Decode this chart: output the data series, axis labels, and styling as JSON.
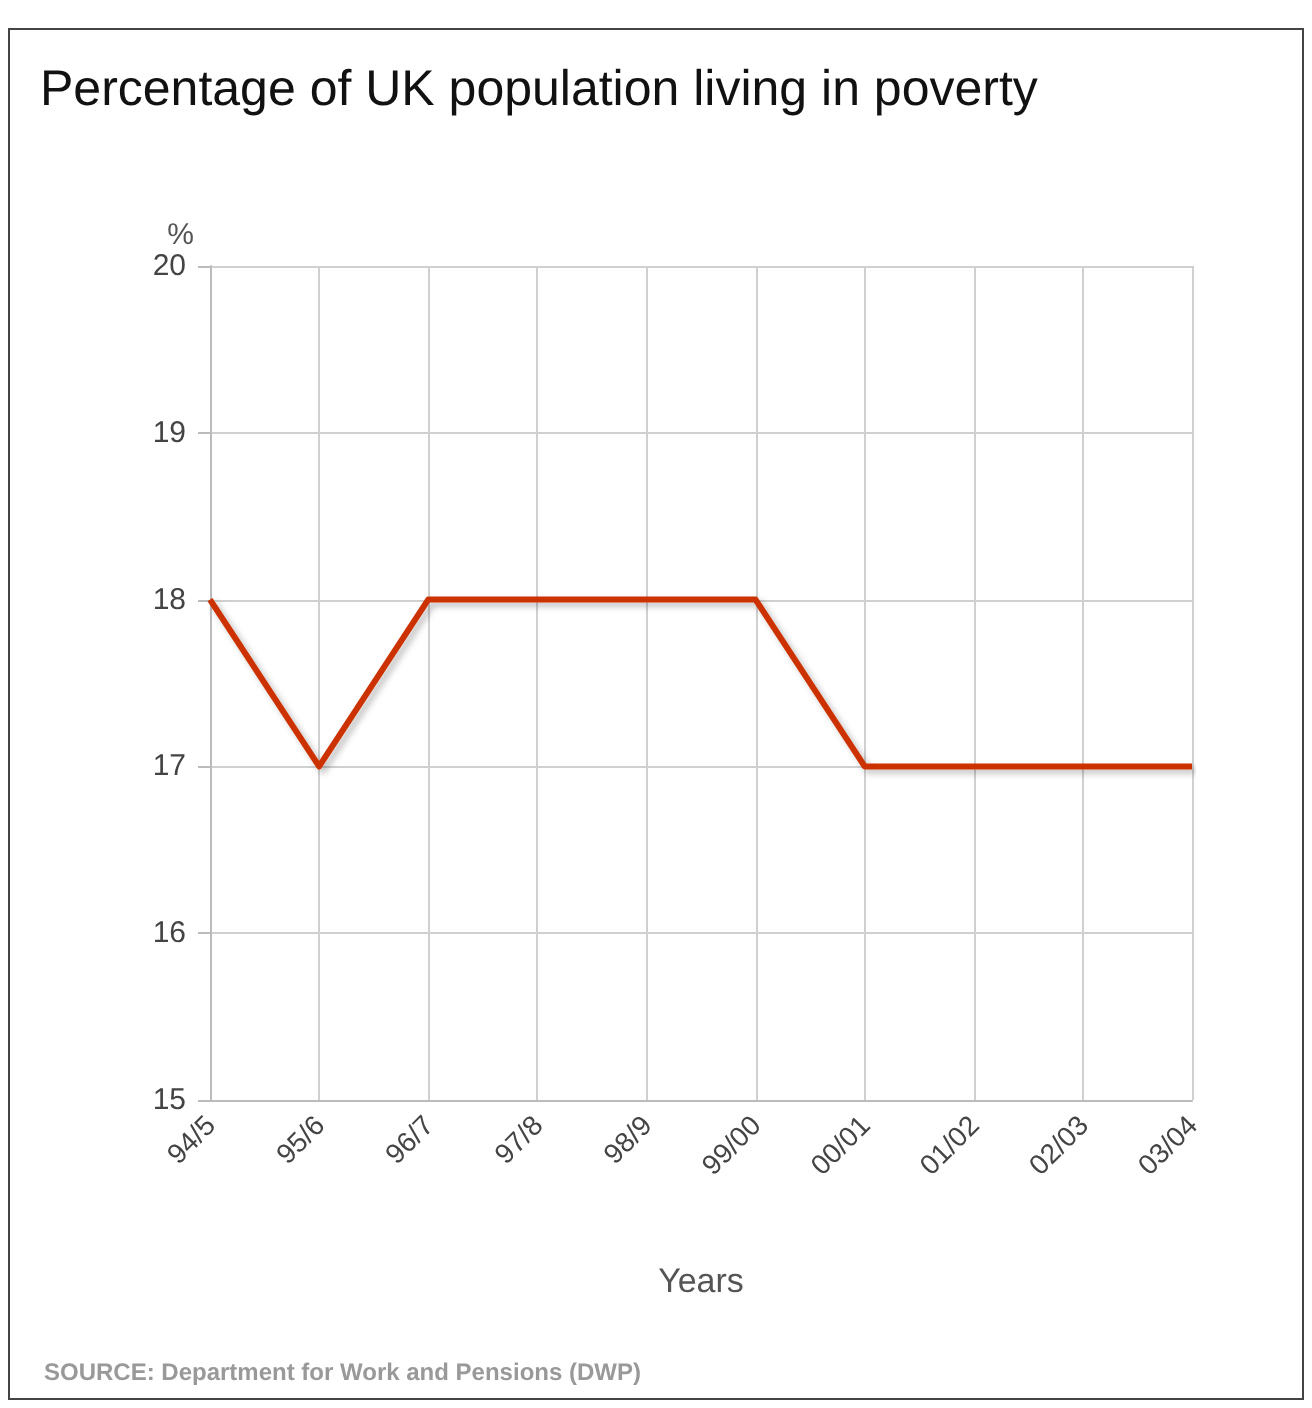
{
  "chart_data": {
    "type": "line",
    "title": "Percentage of UK population living in poverty",
    "xlabel": "Years",
    "ylabel": "%",
    "categories": [
      "94/5",
      "95/6",
      "96/7",
      "97/8",
      "98/9",
      "99/00",
      "00/01",
      "01/02",
      "02/03",
      "03/04"
    ],
    "series": [
      {
        "color": "#cc3300",
        "values": [
          18,
          17,
          18,
          18,
          18,
          18,
          17,
          17,
          17,
          17
        ]
      }
    ],
    "ylim": [
      15,
      20
    ],
    "yticks": [
      15,
      16,
      17,
      18,
      19,
      20
    ],
    "grid": true,
    "marker": "none",
    "line_style": "solid",
    "annotations": [
      "SOURCE: Department for Work and Pensions (DWP)"
    ]
  }
}
